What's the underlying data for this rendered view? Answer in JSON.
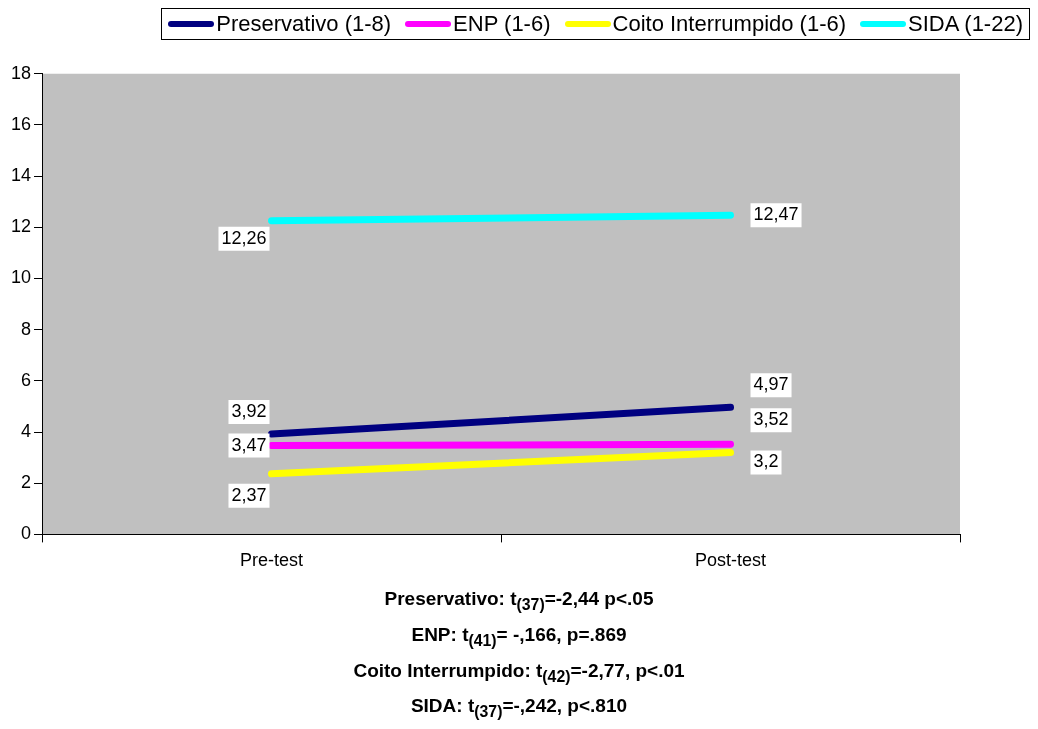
{
  "chart_data": {
    "type": "line",
    "categories": [
      "Pre-test",
      "Post-test"
    ],
    "ylim": [
      0,
      18
    ],
    "yticks": [
      0,
      2,
      4,
      6,
      8,
      10,
      12,
      14,
      16,
      18
    ],
    "legend": "top",
    "series": [
      {
        "name": "Preservativo (1-8)",
        "color": "#000080",
        "values": [
          3.92,
          4.97
        ],
        "value_labels": [
          "3,92",
          "4,97"
        ]
      },
      {
        "name": "ENP (1-6)",
        "color": "#ff00ff",
        "values": [
          3.47,
          3.52
        ],
        "value_labels": [
          "3,47",
          "3,52"
        ]
      },
      {
        "name": "Coito Interrumpido (1-6)",
        "color": "#ffff00",
        "values": [
          2.37,
          3.2
        ],
        "value_labels": [
          "2,37",
          "3,2"
        ]
      },
      {
        "name": "SIDA (1-22)",
        "color": "#00ffff",
        "values": [
          12.26,
          12.47
        ],
        "value_labels": [
          "12,26",
          "12,47"
        ]
      }
    ],
    "annotations": [
      "Preservativo: t$_{(37)}$=-2,44 p<.05",
      "ENP: t$_{(41)}$= -,166, p=.869",
      "Coito Interrumpido: t$_{(42)}$=-2,77, p<.01",
      "SIDA: t$_{(37)}$=-,242, p<.810"
    ]
  }
}
